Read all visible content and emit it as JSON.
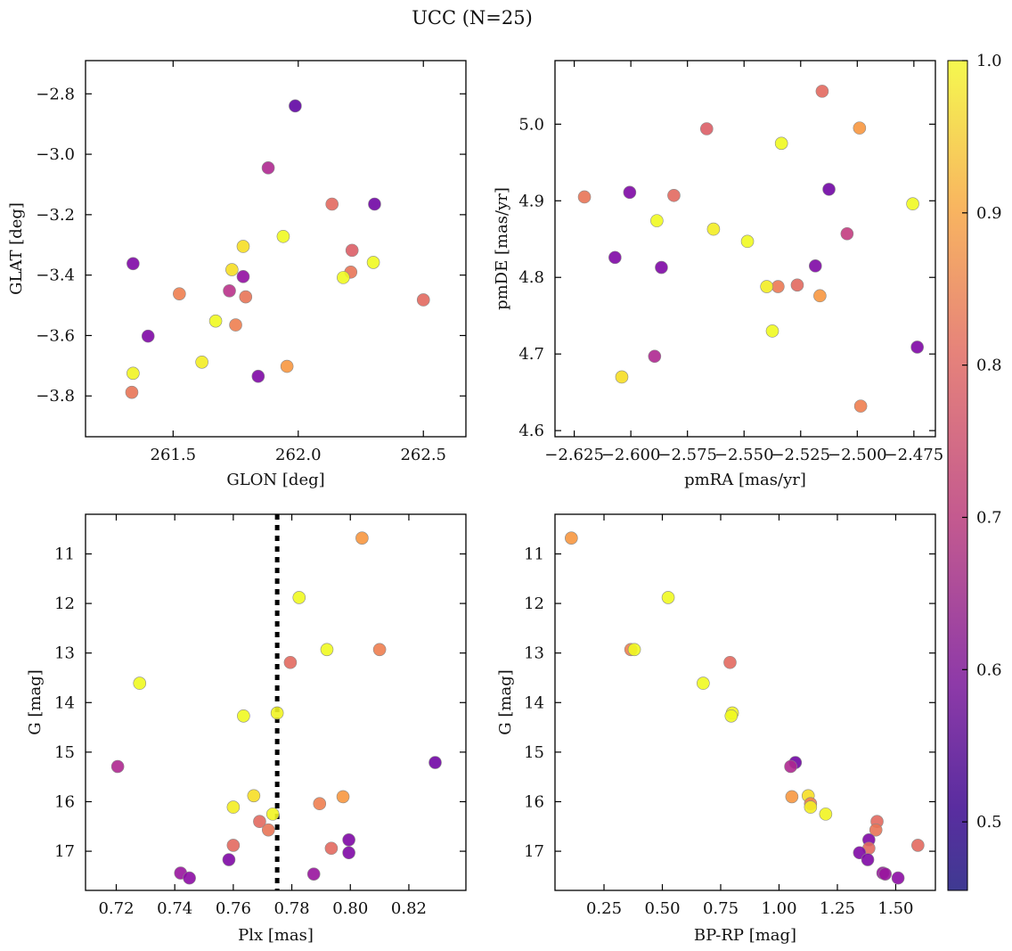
{
  "title": "UCC (N=25)",
  "colorbar": {
    "min": 0.455,
    "max": 1.0,
    "ticks": [
      "0.5",
      "0.6",
      "0.7",
      "0.8",
      "0.9",
      "1.0"
    ],
    "colormap": "plasma"
  },
  "chart_data": [
    {
      "type": "scatter",
      "xlabel": "GLON [deg]",
      "ylabel": "GLAT [deg]",
      "xlim": [
        261.15,
        262.67
      ],
      "ylim": [
        -3.935,
        -2.69
      ],
      "xticks": [
        "261.5",
        "262.0",
        "262.5"
      ],
      "yticks": [
        "−3.8",
        "−3.6",
        "−3.4",
        "−3.2",
        "−3.0",
        "−2.8"
      ],
      "points": [
        {
          "x": 261.988,
          "y": -2.84,
          "c": 0.48
        },
        {
          "x": 261.88,
          "y": -3.045,
          "c": 0.6
        },
        {
          "x": 262.135,
          "y": -3.165,
          "c": 0.72
        },
        {
          "x": 262.305,
          "y": -3.165,
          "c": 0.5
        },
        {
          "x": 261.94,
          "y": -3.272,
          "c": 0.94
        },
        {
          "x": 261.78,
          "y": -3.305,
          "c": 0.9
        },
        {
          "x": 262.215,
          "y": -3.318,
          "c": 0.7
        },
        {
          "x": 262.3,
          "y": -3.358,
          "c": 0.98
        },
        {
          "x": 261.34,
          "y": -3.362,
          "c": 0.52
        },
        {
          "x": 261.735,
          "y": -3.382,
          "c": 0.9
        },
        {
          "x": 262.21,
          "y": -3.39,
          "c": 0.74
        },
        {
          "x": 261.78,
          "y": -3.405,
          "c": 0.55
        },
        {
          "x": 262.18,
          "y": -3.408,
          "c": 0.98
        },
        {
          "x": 261.725,
          "y": -3.452,
          "c": 0.62
        },
        {
          "x": 261.525,
          "y": -3.462,
          "c": 0.76
        },
        {
          "x": 261.79,
          "y": -3.472,
          "c": 0.74
        },
        {
          "x": 262.5,
          "y": -3.482,
          "c": 0.72
        },
        {
          "x": 261.67,
          "y": -3.552,
          "c": 0.95
        },
        {
          "x": 261.75,
          "y": -3.565,
          "c": 0.76
        },
        {
          "x": 261.4,
          "y": -3.602,
          "c": 0.52
        },
        {
          "x": 261.615,
          "y": -3.688,
          "c": 0.92
        },
        {
          "x": 261.955,
          "y": -3.702,
          "c": 0.8
        },
        {
          "x": 261.34,
          "y": -3.725,
          "c": 0.93
        },
        {
          "x": 261.84,
          "y": -3.735,
          "c": 0.52
        },
        {
          "x": 261.335,
          "y": -3.788,
          "c": 0.74
        }
      ]
    },
    {
      "type": "scatter",
      "xlabel": "pmRA [mas/yr]",
      "ylabel": "pmDE [mas/yr]",
      "xlim": [
        -2.6335,
        -2.4655
      ],
      "ylim": [
        4.592,
        5.083
      ],
      "xticks": [
        "−2.625",
        "−2.600",
        "−2.575",
        "−2.550",
        "−2.525",
        "−2.500",
        "−2.475"
      ],
      "yticks": [
        "4.6",
        "4.7",
        "4.8",
        "4.9",
        "5.0"
      ],
      "points": [
        {
          "x": -2.5155,
          "y": 5.043,
          "c": 0.72
        },
        {
          "x": -2.499,
          "y": 4.995,
          "c": 0.8
        },
        {
          "x": -2.5665,
          "y": 4.994,
          "c": 0.7
        },
        {
          "x": -2.5335,
          "y": 4.975,
          "c": 0.95
        },
        {
          "x": -2.5125,
          "y": 4.915,
          "c": 0.5
        },
        {
          "x": -2.6005,
          "y": 4.911,
          "c": 0.52
        },
        {
          "x": -2.581,
          "y": 4.907,
          "c": 0.72
        },
        {
          "x": -2.6205,
          "y": 4.905,
          "c": 0.74
        },
        {
          "x": -2.4755,
          "y": 4.896,
          "c": 0.94
        },
        {
          "x": -2.5885,
          "y": 4.874,
          "c": 0.98
        },
        {
          "x": -2.5635,
          "y": 4.863,
          "c": 0.92
        },
        {
          "x": -2.5045,
          "y": 4.857,
          "c": 0.64
        },
        {
          "x": -2.5485,
          "y": 4.847,
          "c": 0.96
        },
        {
          "x": -2.607,
          "y": 4.826,
          "c": 0.52
        },
        {
          "x": -2.5185,
          "y": 4.815,
          "c": 0.52
        },
        {
          "x": -2.5865,
          "y": 4.813,
          "c": 0.52
        },
        {
          "x": -2.5265,
          "y": 4.79,
          "c": 0.72
        },
        {
          "x": -2.535,
          "y": 4.788,
          "c": 0.75
        },
        {
          "x": -2.54,
          "y": 4.788,
          "c": 0.92
        },
        {
          "x": -2.5165,
          "y": 4.776,
          "c": 0.8
        },
        {
          "x": -2.5375,
          "y": 4.73,
          "c": 0.96
        },
        {
          "x": -2.4735,
          "y": 4.709,
          "c": 0.52
        },
        {
          "x": -2.5895,
          "y": 4.697,
          "c": 0.6
        },
        {
          "x": -2.604,
          "y": 4.67,
          "c": 0.9
        },
        {
          "x": -2.4985,
          "y": 4.632,
          "c": 0.76
        }
      ]
    },
    {
      "type": "scatter",
      "xlabel": "Plx [mas]",
      "ylabel": "G [mag]",
      "xlim": [
        0.7095,
        0.8395
      ],
      "ylim": [
        17.79,
        10.2
      ],
      "y_inverted": true,
      "xticks": [
        "0.72",
        "0.74",
        "0.76",
        "0.78",
        "0.80",
        "0.82"
      ],
      "yticks": [
        "11",
        "12",
        "13",
        "14",
        "15",
        "16",
        "17"
      ],
      "vline": 0.775,
      "points": [
        {
          "x": 0.804,
          "y": 10.68,
          "c": 0.8
        },
        {
          "x": 0.7825,
          "y": 11.88,
          "c": 0.98
        },
        {
          "x": 0.792,
          "y": 12.93,
          "c": 0.94
        },
        {
          "x": 0.81,
          "y": 12.93,
          "c": 0.76
        },
        {
          "x": 0.7795,
          "y": 13.19,
          "c": 0.72
        },
        {
          "x": 0.728,
          "y": 13.61,
          "c": 0.96
        },
        {
          "x": 0.775,
          "y": 14.21,
          "c": 0.93
        },
        {
          "x": 0.7635,
          "y": 14.27,
          "c": 0.98
        },
        {
          "x": 0.829,
          "y": 15.21,
          "c": 0.5
        },
        {
          "x": 0.7205,
          "y": 15.29,
          "c": 0.6
        },
        {
          "x": 0.767,
          "y": 15.88,
          "c": 0.9
        },
        {
          "x": 0.7975,
          "y": 15.9,
          "c": 0.8
        },
        {
          "x": 0.7895,
          "y": 16.04,
          "c": 0.76
        },
        {
          "x": 0.76,
          "y": 16.11,
          "c": 0.92
        },
        {
          "x": 0.7735,
          "y": 16.25,
          "c": 0.93
        },
        {
          "x": 0.769,
          "y": 16.4,
          "c": 0.72
        },
        {
          "x": 0.772,
          "y": 16.57,
          "c": 0.74
        },
        {
          "x": 0.7995,
          "y": 16.77,
          "c": 0.52
        },
        {
          "x": 0.76,
          "y": 16.88,
          "c": 0.72
        },
        {
          "x": 0.7935,
          "y": 16.94,
          "c": 0.72
        },
        {
          "x": 0.7995,
          "y": 17.03,
          "c": 0.52
        },
        {
          "x": 0.7585,
          "y": 17.17,
          "c": 0.52
        },
        {
          "x": 0.742,
          "y": 17.44,
          "c": 0.56
        },
        {
          "x": 0.7875,
          "y": 17.46,
          "c": 0.56
        },
        {
          "x": 0.745,
          "y": 17.54,
          "c": 0.54
        }
      ]
    },
    {
      "type": "scatter",
      "xlabel": "BP-RP [mag]",
      "ylabel": "G [mag]",
      "xlim": [
        0.04,
        1.67
      ],
      "ylim": [
        17.79,
        10.2
      ],
      "y_inverted": true,
      "xticks": [
        "0.25",
        "0.50",
        "0.75",
        "1.00",
        "1.25",
        "1.50"
      ],
      "yticks": [
        "11",
        "12",
        "13",
        "14",
        "15",
        "16",
        "17"
      ],
      "points": [
        {
          "x": 0.11,
          "y": 10.68,
          "c": 0.8
        },
        {
          "x": 0.525,
          "y": 11.88,
          "c": 0.98
        },
        {
          "x": 0.365,
          "y": 12.93,
          "c": 0.76
        },
        {
          "x": 0.38,
          "y": 12.93,
          "c": 0.94
        },
        {
          "x": 0.79,
          "y": 13.19,
          "c": 0.72
        },
        {
          "x": 0.675,
          "y": 13.61,
          "c": 0.96
        },
        {
          "x": 0.8,
          "y": 14.21,
          "c": 0.93
        },
        {
          "x": 0.795,
          "y": 14.27,
          "c": 0.98
        },
        {
          "x": 1.07,
          "y": 15.21,
          "c": 0.5
        },
        {
          "x": 1.05,
          "y": 15.29,
          "c": 0.6
        },
        {
          "x": 1.055,
          "y": 15.9,
          "c": 0.8
        },
        {
          "x": 1.125,
          "y": 15.88,
          "c": 0.9
        },
        {
          "x": 1.135,
          "y": 16.04,
          "c": 0.76
        },
        {
          "x": 1.135,
          "y": 16.11,
          "c": 0.92
        },
        {
          "x": 1.2,
          "y": 16.25,
          "c": 0.93
        },
        {
          "x": 1.42,
          "y": 16.4,
          "c": 0.72
        },
        {
          "x": 1.415,
          "y": 16.57,
          "c": 0.74
        },
        {
          "x": 1.385,
          "y": 16.77,
          "c": 0.52
        },
        {
          "x": 1.595,
          "y": 16.88,
          "c": 0.72
        },
        {
          "x": 1.385,
          "y": 16.94,
          "c": 0.72
        },
        {
          "x": 1.345,
          "y": 17.03,
          "c": 0.52
        },
        {
          "x": 1.38,
          "y": 17.17,
          "c": 0.52
        },
        {
          "x": 1.445,
          "y": 17.44,
          "c": 0.56
        },
        {
          "x": 1.455,
          "y": 17.46,
          "c": 0.56
        },
        {
          "x": 1.51,
          "y": 17.54,
          "c": 0.54
        }
      ]
    }
  ]
}
